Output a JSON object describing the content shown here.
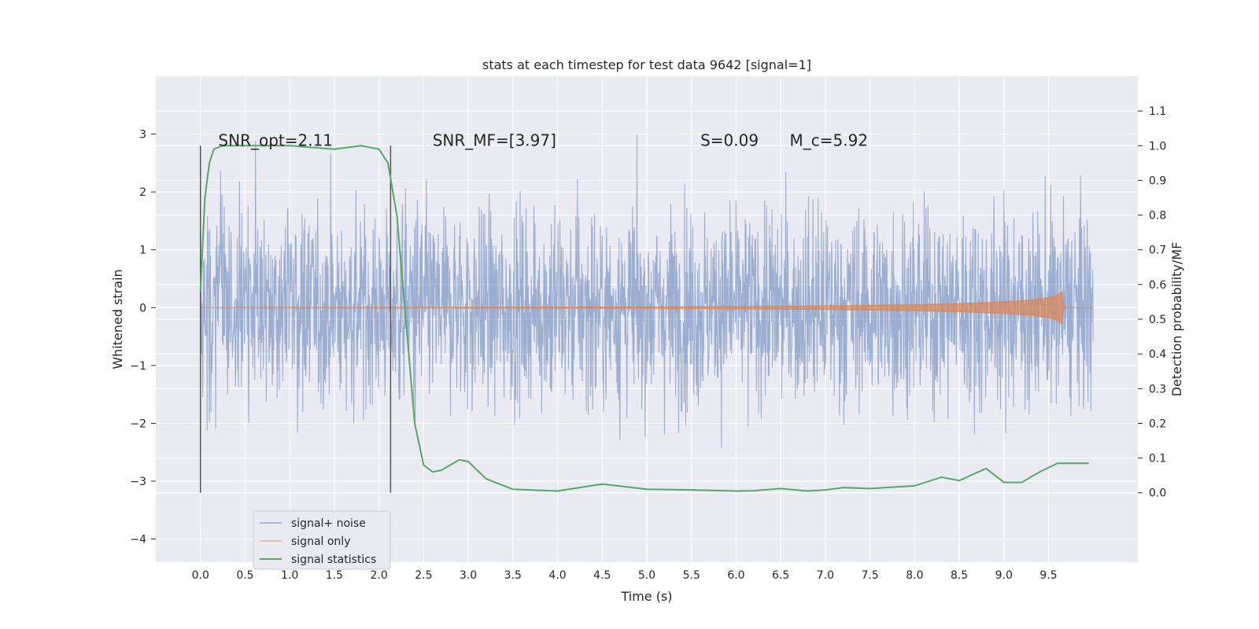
{
  "chart_data": {
    "type": "line",
    "title": "stats at each timestep for test data 9642 [signal=1]",
    "xlabel": "Time (s)",
    "ylabel": "Whitened strain",
    "ylabel_right": "Detection probability/MF",
    "xlim": [
      -0.5,
      10.5
    ],
    "ylim": [
      -4.4,
      4.0
    ],
    "ylim_right": [
      -0.2,
      1.2
    ],
    "x_ticks": [
      0.0,
      0.5,
      1.0,
      1.5,
      2.0,
      2.5,
      3.0,
      3.5,
      4.0,
      4.5,
      5.0,
      5.5,
      6.0,
      6.5,
      7.0,
      7.5,
      8.0,
      8.5,
      9.0,
      9.5
    ],
    "x_tick_labels": [
      "0.0",
      "0.5",
      "1.0",
      "1.5",
      "2.0",
      "2.5",
      "3.0",
      "3.5",
      "4.0",
      "4.5",
      "5.0",
      "5.5",
      "6.0",
      "6.5",
      "7.0",
      "7.5",
      "8.0",
      "8.5",
      "9.0",
      "9.5"
    ],
    "y_ticks": [
      3,
      2,
      1,
      0,
      -1,
      -2,
      -3,
      -4
    ],
    "y_tick_labels": [
      "3",
      "2",
      "1",
      "0",
      "−1",
      "−2",
      "−3",
      "−4"
    ],
    "y_ticks_right": [
      1.1,
      1.0,
      0.9,
      0.8,
      0.7,
      0.6,
      0.5,
      0.4,
      0.3,
      0.2,
      0.1,
      0.0
    ],
    "y_tick_labels_right": [
      "1.1",
      "1.0",
      "0.9",
      "0.8",
      "0.7",
      "0.6",
      "0.5",
      "0.4",
      "0.3",
      "0.2",
      "0.1",
      "0.0"
    ],
    "grid": true,
    "legend_position": "lower-left",
    "annotations": [
      {
        "text": "SNR_opt=2.11",
        "x": 0.2,
        "y": 2.8
      },
      {
        "text": "SNR_MF=[3.97]",
        "x": 2.6,
        "y": 2.8
      },
      {
        "text": "S=0.09",
        "x": 5.6,
        "y": 2.8
      },
      {
        "text": "M_c=5.92",
        "x": 6.6,
        "y": 2.8
      }
    ],
    "vlines": [
      {
        "x": 0.0,
        "ymin": -3.2,
        "ymax": 2.8
      },
      {
        "x": 2.13,
        "ymin": -3.2,
        "ymax": 2.8
      }
    ],
    "series": [
      {
        "name": "signal+ noise",
        "color": "#4c72b0",
        "noise_sigma": 0.85,
        "x_range": [
          0.0,
          10.0
        ]
      },
      {
        "name": "signal only",
        "color": "#dd8452",
        "x_range": [
          0.0,
          10.0
        ],
        "envelope": {
          "x": [
            0.0,
            5.0,
            7.0,
            8.0,
            8.5,
            9.0,
            9.3,
            9.5,
            9.6,
            9.65,
            9.67,
            10.0
          ],
          "amp": [
            0.0,
            0.01,
            0.03,
            0.05,
            0.07,
            0.1,
            0.13,
            0.17,
            0.22,
            0.28,
            0.0,
            0.0
          ]
        }
      },
      {
        "name": "signal statistics",
        "color": "#55a868",
        "axis": "right",
        "x": [
          0.0,
          0.05,
          0.1,
          0.15,
          0.25,
          0.5,
          1.0,
          1.5,
          1.8,
          2.0,
          2.1,
          2.2,
          2.3,
          2.4,
          2.5,
          2.6,
          2.7,
          2.8,
          2.9,
          3.0,
          3.2,
          3.5,
          4.0,
          4.5,
          5.0,
          5.5,
          6.0,
          6.2,
          6.5,
          6.8,
          7.0,
          7.2,
          7.5,
          8.0,
          8.3,
          8.5,
          8.8,
          9.0,
          9.2,
          9.4,
          9.6,
          9.8,
          9.95
        ],
        "y": [
          0.58,
          0.85,
          0.95,
          0.99,
          1.0,
          1.0,
          1.0,
          0.99,
          1.0,
          0.99,
          0.95,
          0.8,
          0.5,
          0.2,
          0.08,
          0.06,
          0.065,
          0.08,
          0.095,
          0.09,
          0.04,
          0.01,
          0.005,
          0.025,
          0.01,
          0.008,
          0.005,
          0.006,
          0.012,
          0.005,
          0.008,
          0.015,
          0.012,
          0.02,
          0.045,
          0.035,
          0.07,
          0.03,
          0.03,
          0.06,
          0.085,
          0.085,
          0.085
        ]
      }
    ]
  }
}
